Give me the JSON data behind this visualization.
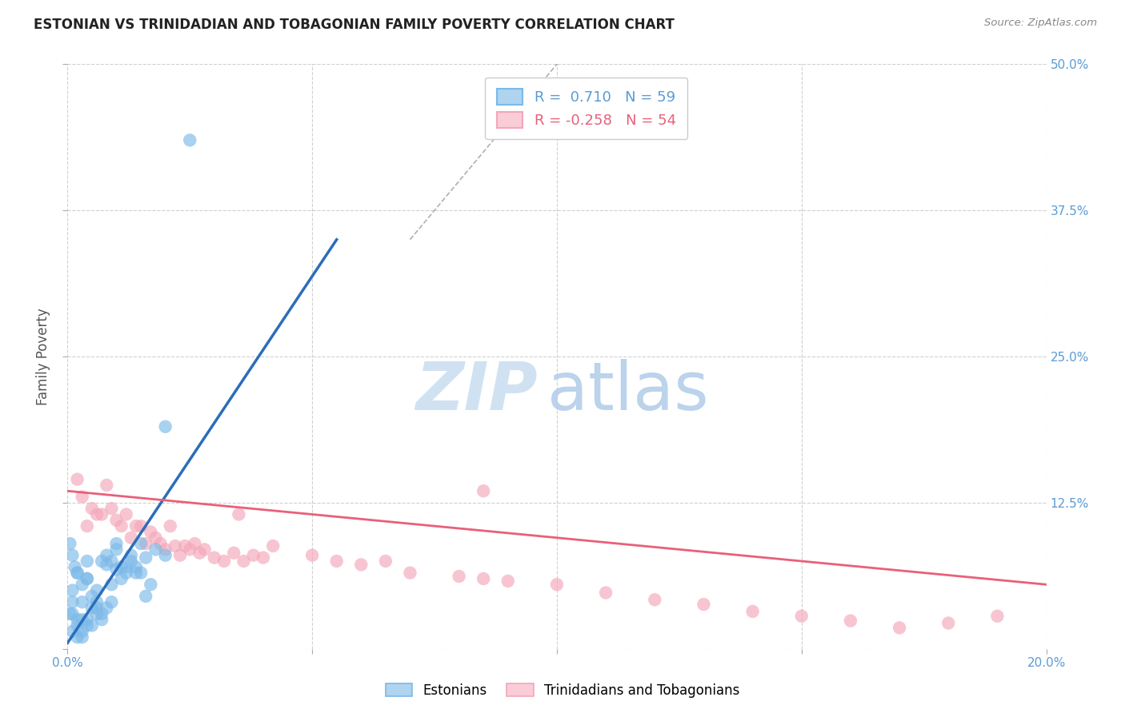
{
  "title": "ESTONIAN VS TRINIDADIAN AND TOBAGONIAN FAMILY POVERTY CORRELATION CHART",
  "source": "Source: ZipAtlas.com",
  "ylabel": "Family Poverty",
  "xlim": [
    0.0,
    0.2
  ],
  "ylim": [
    0.0,
    0.5
  ],
  "xticks": [
    0.0,
    0.05,
    0.1,
    0.15,
    0.2
  ],
  "xticklabels_show": [
    "0.0%",
    "20.0%"
  ],
  "yticks": [
    0.0,
    0.125,
    0.25,
    0.375,
    0.5
  ],
  "yticklabels": [
    "",
    "12.5%",
    "25.0%",
    "37.5%",
    "50.0%"
  ],
  "blue_R": 0.71,
  "blue_N": 59,
  "pink_R": -0.258,
  "pink_N": 54,
  "blue_color": "#7cb9e8",
  "pink_color": "#f4a7b9",
  "blue_label": "Estonians",
  "pink_label": "Trinidadians and Tobagonians",
  "background_color": "#ffffff",
  "grid_color": "#d0d0d0",
  "watermark_zip": "ZIP",
  "watermark_atlas": "atlas",
  "blue_scatter": [
    [
      0.003,
      0.04
    ],
    [
      0.005,
      0.035
    ],
    [
      0.004,
      0.06
    ],
    [
      0.002,
      0.02
    ],
    [
      0.006,
      0.03
    ],
    [
      0.007,
      0.025
    ],
    [
      0.009,
      0.04
    ],
    [
      0.001,
      0.05
    ],
    [
      0.003,
      0.015
    ],
    [
      0.002,
      0.01
    ],
    [
      0.001,
      0.03
    ],
    [
      0.004,
      0.02
    ],
    [
      0.005,
      0.045
    ],
    [
      0.006,
      0.035
    ],
    [
      0.004,
      0.025
    ],
    [
      0.001,
      0.04
    ],
    [
      0.007,
      0.03
    ],
    [
      0.003,
      0.055
    ],
    [
      0.005,
      0.02
    ],
    [
      0.002,
      0.065
    ],
    [
      0.001,
      0.015
    ],
    [
      0.006,
      0.04
    ],
    [
      0.003,
      0.01
    ],
    [
      0.002,
      0.025
    ],
    [
      0.008,
      0.035
    ],
    [
      0.0005,
      0.03
    ],
    [
      0.004,
      0.06
    ],
    [
      0.003,
      0.025
    ],
    [
      0.006,
      0.05
    ],
    [
      0.008,
      0.08
    ],
    [
      0.01,
      0.09
    ],
    [
      0.012,
      0.065
    ],
    [
      0.009,
      0.075
    ],
    [
      0.011,
      0.07
    ],
    [
      0.013,
      0.08
    ],
    [
      0.015,
      0.065
    ],
    [
      0.01,
      0.085
    ],
    [
      0.014,
      0.07
    ],
    [
      0.009,
      0.055
    ],
    [
      0.011,
      0.06
    ],
    [
      0.016,
      0.045
    ],
    [
      0.012,
      0.07
    ],
    [
      0.017,
      0.055
    ],
    [
      0.014,
      0.065
    ],
    [
      0.007,
      0.075
    ],
    [
      0.02,
      0.08
    ],
    [
      0.015,
      0.09
    ],
    [
      0.018,
      0.085
    ],
    [
      0.008,
      0.072
    ],
    [
      0.01,
      0.068
    ],
    [
      0.013,
      0.075
    ],
    [
      0.016,
      0.078
    ],
    [
      0.02,
      0.19
    ],
    [
      0.001,
      0.08
    ],
    [
      0.0015,
      0.07
    ],
    [
      0.0005,
      0.09
    ],
    [
      0.002,
      0.065
    ],
    [
      0.004,
      0.075
    ],
    [
      0.025,
      0.435
    ]
  ],
  "pink_scatter": [
    [
      0.005,
      0.12
    ],
    [
      0.008,
      0.14
    ],
    [
      0.003,
      0.13
    ],
    [
      0.01,
      0.11
    ],
    [
      0.002,
      0.145
    ],
    [
      0.006,
      0.115
    ],
    [
      0.004,
      0.105
    ],
    [
      0.007,
      0.115
    ],
    [
      0.009,
      0.12
    ],
    [
      0.011,
      0.105
    ],
    [
      0.013,
      0.095
    ],
    [
      0.015,
      0.105
    ],
    [
      0.012,
      0.115
    ],
    [
      0.016,
      0.09
    ],
    [
      0.014,
      0.105
    ],
    [
      0.018,
      0.095
    ],
    [
      0.017,
      0.1
    ],
    [
      0.019,
      0.09
    ],
    [
      0.02,
      0.085
    ],
    [
      0.022,
      0.088
    ],
    [
      0.021,
      0.105
    ],
    [
      0.023,
      0.08
    ],
    [
      0.025,
      0.085
    ],
    [
      0.024,
      0.088
    ],
    [
      0.026,
      0.09
    ],
    [
      0.027,
      0.082
    ],
    [
      0.028,
      0.085
    ],
    [
      0.03,
      0.078
    ],
    [
      0.032,
      0.075
    ],
    [
      0.034,
      0.082
    ],
    [
      0.036,
      0.075
    ],
    [
      0.038,
      0.08
    ],
    [
      0.035,
      0.115
    ],
    [
      0.04,
      0.078
    ],
    [
      0.042,
      0.088
    ],
    [
      0.05,
      0.08
    ],
    [
      0.055,
      0.075
    ],
    [
      0.06,
      0.072
    ],
    [
      0.065,
      0.075
    ],
    [
      0.07,
      0.065
    ],
    [
      0.08,
      0.062
    ],
    [
      0.085,
      0.06
    ],
    [
      0.09,
      0.058
    ],
    [
      0.1,
      0.055
    ],
    [
      0.11,
      0.048
    ],
    [
      0.12,
      0.042
    ],
    [
      0.13,
      0.038
    ],
    [
      0.14,
      0.032
    ],
    [
      0.15,
      0.028
    ],
    [
      0.16,
      0.024
    ],
    [
      0.17,
      0.018
    ],
    [
      0.18,
      0.022
    ],
    [
      0.085,
      0.135
    ],
    [
      0.19,
      0.028
    ]
  ],
  "ref_line_x": [
    0.07,
    0.2
  ],
  "ref_line_y": [
    0.35,
    1.0
  ],
  "blue_line_x": [
    0.0,
    0.055
  ],
  "blue_line_y": [
    0.005,
    0.35
  ],
  "pink_line_x": [
    0.0,
    0.2
  ],
  "pink_line_y": [
    0.135,
    0.055
  ]
}
